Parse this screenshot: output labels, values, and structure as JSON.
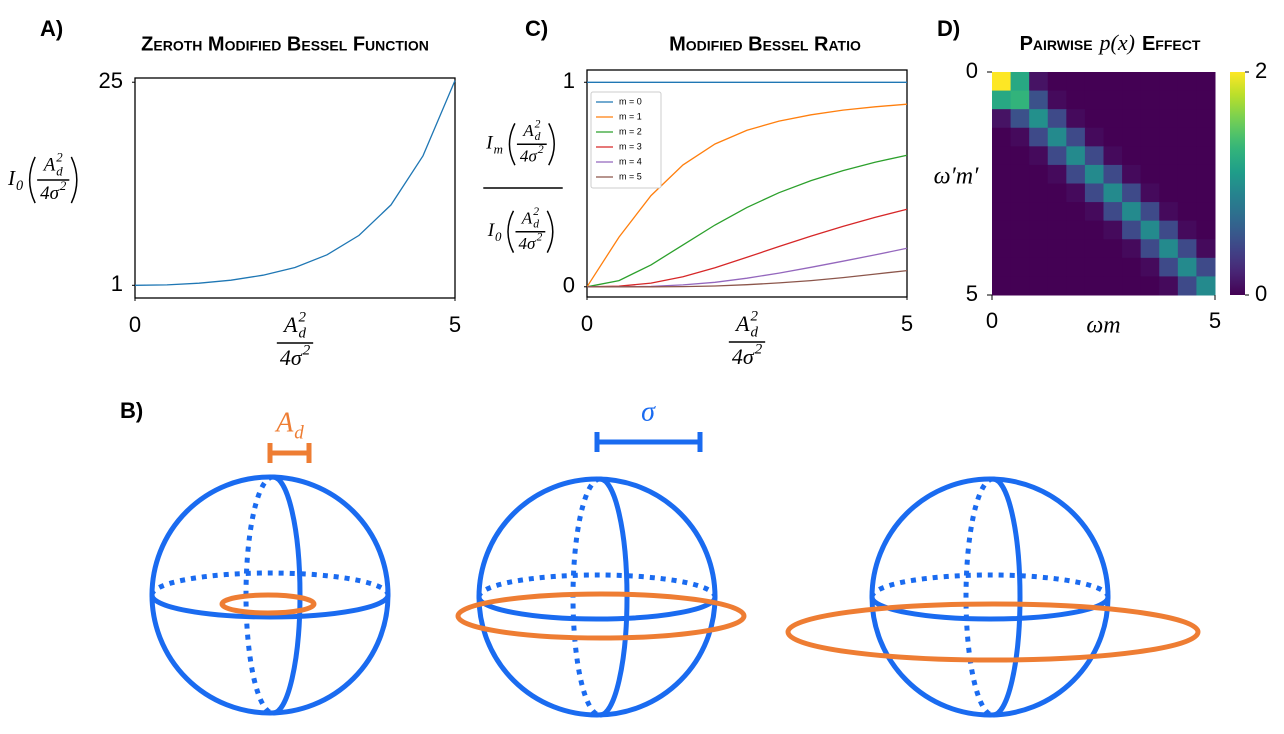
{
  "chart_data": [
    {
      "type": "line",
      "panel_label": "A)",
      "title": "Zeroth Modified Bessel Function",
      "x": [
        0,
        0.5,
        1,
        1.5,
        2,
        2.5,
        3,
        3.5,
        4,
        4.5,
        5
      ],
      "values": [
        1,
        1.05,
        1.25,
        1.6,
        2.2,
        3.1,
        4.6,
        6.9,
        10.5,
        16.3,
        25.2
      ],
      "color": "#1f77b4",
      "xlim": [
        0,
        5
      ],
      "ylim": [
        -0.5,
        25.5
      ],
      "xticks": [
        0,
        5
      ],
      "yticks": [
        1,
        25
      ],
      "xlabel": {
        "num": {
          "base": "A",
          "sub": "d",
          "sup": "2"
        },
        "den": {
          "base": "4σ",
          "sup": "2"
        }
      },
      "ylabel": {
        "base": "I",
        "sub": "0",
        "arg": {
          "num": {
            "base": "A",
            "sub": "d",
            "sup": "2"
          },
          "den": {
            "base": "4σ",
            "sup": "2"
          }
        }
      }
    },
    {
      "type": "line",
      "panel_label": "C)",
      "title": "Modified Bessel Ratio",
      "x": [
        0,
        0.5,
        1,
        1.5,
        2,
        2.5,
        3,
        3.5,
        4,
        4.5,
        5
      ],
      "series": [
        {
          "name": "m = 0",
          "color": "#1f77b4",
          "values": [
            1,
            1,
            1,
            1,
            1,
            1,
            1,
            1,
            1,
            1,
            1
          ]
        },
        {
          "name": "m = 1",
          "color": "#ff7f0e",
          "values": [
            0,
            0.243,
            0.446,
            0.596,
            0.698,
            0.765,
            0.81,
            0.841,
            0.864,
            0.88,
            0.893
          ]
        },
        {
          "name": "m = 2",
          "color": "#2ca02c",
          "values": [
            0,
            0.03,
            0.107,
            0.205,
            0.302,
            0.388,
            0.46,
            0.519,
            0.568,
            0.609,
            0.643
          ]
        },
        {
          "name": "m = 3",
          "color": "#d62728",
          "values": [
            0,
            0.003,
            0.018,
            0.049,
            0.093,
            0.144,
            0.197,
            0.248,
            0.295,
            0.339,
            0.379
          ]
        },
        {
          "name": "m = 4",
          "color": "#9467bd",
          "values": [
            0,
            0,
            0.002,
            0.009,
            0.022,
            0.042,
            0.067,
            0.095,
            0.125,
            0.156,
            0.188
          ]
        },
        {
          "name": "m = 5",
          "color": "#8c564b",
          "values": [
            0,
            0,
            0,
            0.001,
            0.004,
            0.01,
            0.019,
            0.03,
            0.045,
            0.062,
            0.079
          ]
        }
      ],
      "legend": "upper left",
      "xlim": [
        0,
        5
      ],
      "ylim": [
        -0.05,
        1.06
      ],
      "xticks": [
        0,
        5
      ],
      "yticks": [
        0,
        1
      ],
      "xlabel": {
        "num": {
          "base": "A",
          "sub": "d",
          "sup": "2"
        },
        "den": {
          "base": "4σ",
          "sup": "2"
        }
      },
      "ylabel": {
        "num": {
          "base": "I",
          "sub": "m",
          "arg": {
            "num": {
              "base": "A",
              "sub": "d",
              "sup": "2"
            },
            "den": {
              "base": "4σ",
              "sup": "2"
            }
          }
        },
        "den": {
          "base": "I",
          "sub": "0",
          "arg": {
            "num": {
              "base": "A",
              "sub": "d",
              "sup": "2"
            },
            "den": {
              "base": "4σ",
              "sup": "2"
            }
          }
        }
      }
    },
    {
      "type": "heatmap",
      "panel_label": "D)",
      "title": {
        "before": "Pairwise",
        "math": "p(x)",
        "after": "Effect"
      },
      "xlabel": "ωm",
      "ylabel": "ω′m′",
      "xlim": [
        0,
        5
      ],
      "ylim": [
        5,
        0
      ],
      "xticks": [
        0,
        5
      ],
      "yticks": [
        0,
        5
      ],
      "colormap": "viridis",
      "colorbar": {
        "lim": [
          0,
          2
        ],
        "ticks": [
          0,
          2
        ]
      },
      "z": [
        [
          2.0,
          1.2,
          0.1,
          0,
          0,
          0,
          0,
          0,
          0,
          0,
          0,
          0
        ],
        [
          1.2,
          1.3,
          0.5,
          0.05,
          0,
          0,
          0,
          0,
          0,
          0,
          0,
          0
        ],
        [
          0.1,
          0.5,
          1.0,
          0.45,
          0.05,
          0,
          0,
          0,
          0,
          0,
          0,
          0
        ],
        [
          0,
          0.05,
          0.45,
          0.95,
          0.45,
          0.05,
          0,
          0,
          0,
          0,
          0,
          0
        ],
        [
          0,
          0,
          0.05,
          0.45,
          0.95,
          0.45,
          0.05,
          0,
          0,
          0,
          0,
          0
        ],
        [
          0,
          0,
          0,
          0.05,
          0.45,
          0.95,
          0.45,
          0.05,
          0,
          0,
          0,
          0
        ],
        [
          0,
          0,
          0,
          0,
          0.05,
          0.45,
          0.95,
          0.45,
          0.05,
          0,
          0,
          0
        ],
        [
          0,
          0,
          0,
          0,
          0,
          0.05,
          0.45,
          0.95,
          0.45,
          0.05,
          0,
          0
        ],
        [
          0,
          0,
          0,
          0,
          0,
          0,
          0.05,
          0.45,
          0.95,
          0.45,
          0.05,
          0
        ],
        [
          0,
          0,
          0,
          0,
          0,
          0,
          0,
          0.05,
          0.45,
          0.95,
          0.45,
          0.05
        ],
        [
          0,
          0,
          0,
          0,
          0,
          0,
          0,
          0,
          0.05,
          0.45,
          0.95,
          0.45
        ],
        [
          0,
          0,
          0,
          0,
          0,
          0,
          0,
          0,
          0,
          0.05,
          0.45,
          0.95
        ]
      ]
    }
  ],
  "diagram": {
    "label": "B)",
    "amplitude_label": {
      "base": "A",
      "sub": "d"
    },
    "sigma_label": "σ"
  }
}
